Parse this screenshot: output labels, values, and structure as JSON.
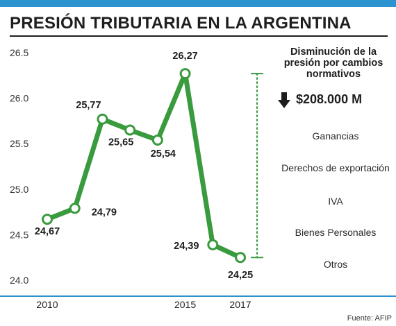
{
  "title": "PRESIÓN TRIBUTARIA EN LA ARGENTINA",
  "source": "Fuente: AFIP",
  "panel": {
    "title": "Disminución de la presión por cambios normativos",
    "amount": "$208.000 M",
    "arrow_icon": "arrow-down-icon",
    "items": [
      "Ganancias",
      "Derechos de exportación",
      "IVA",
      "Bienes Personales",
      "Otros"
    ]
  },
  "colors": {
    "line": "#3a9a3e",
    "accent": "#2a93d0",
    "text": "#1e1e1e"
  },
  "chart_data": {
    "type": "line",
    "title": "PRESIÓN TRIBUTARIA EN LA ARGENTINA",
    "xlabel": "",
    "ylabel": "",
    "x": [
      2010,
      2011,
      2012,
      2013,
      2014,
      2015,
      2016,
      2017
    ],
    "xticks": [
      "2010",
      "2015",
      "2017"
    ],
    "yticks": [
      "26.5",
      "26.0",
      "25.5",
      "25.0",
      "24.5",
      "24.0"
    ],
    "ylim": [
      24.0,
      26.5
    ],
    "grid": false,
    "series": [
      {
        "values": [
          24.67,
          24.79,
          25.77,
          25.65,
          25.54,
          26.27,
          24.39,
          24.25
        ],
        "labels": [
          "24,67",
          "24,79",
          "25,77",
          "25,65",
          "25,54",
          "26,27",
          "24,39",
          "24,25"
        ]
      }
    ],
    "range_indicator": {
      "from": 24.25,
      "to": 26.27,
      "style": "dotted"
    }
  }
}
